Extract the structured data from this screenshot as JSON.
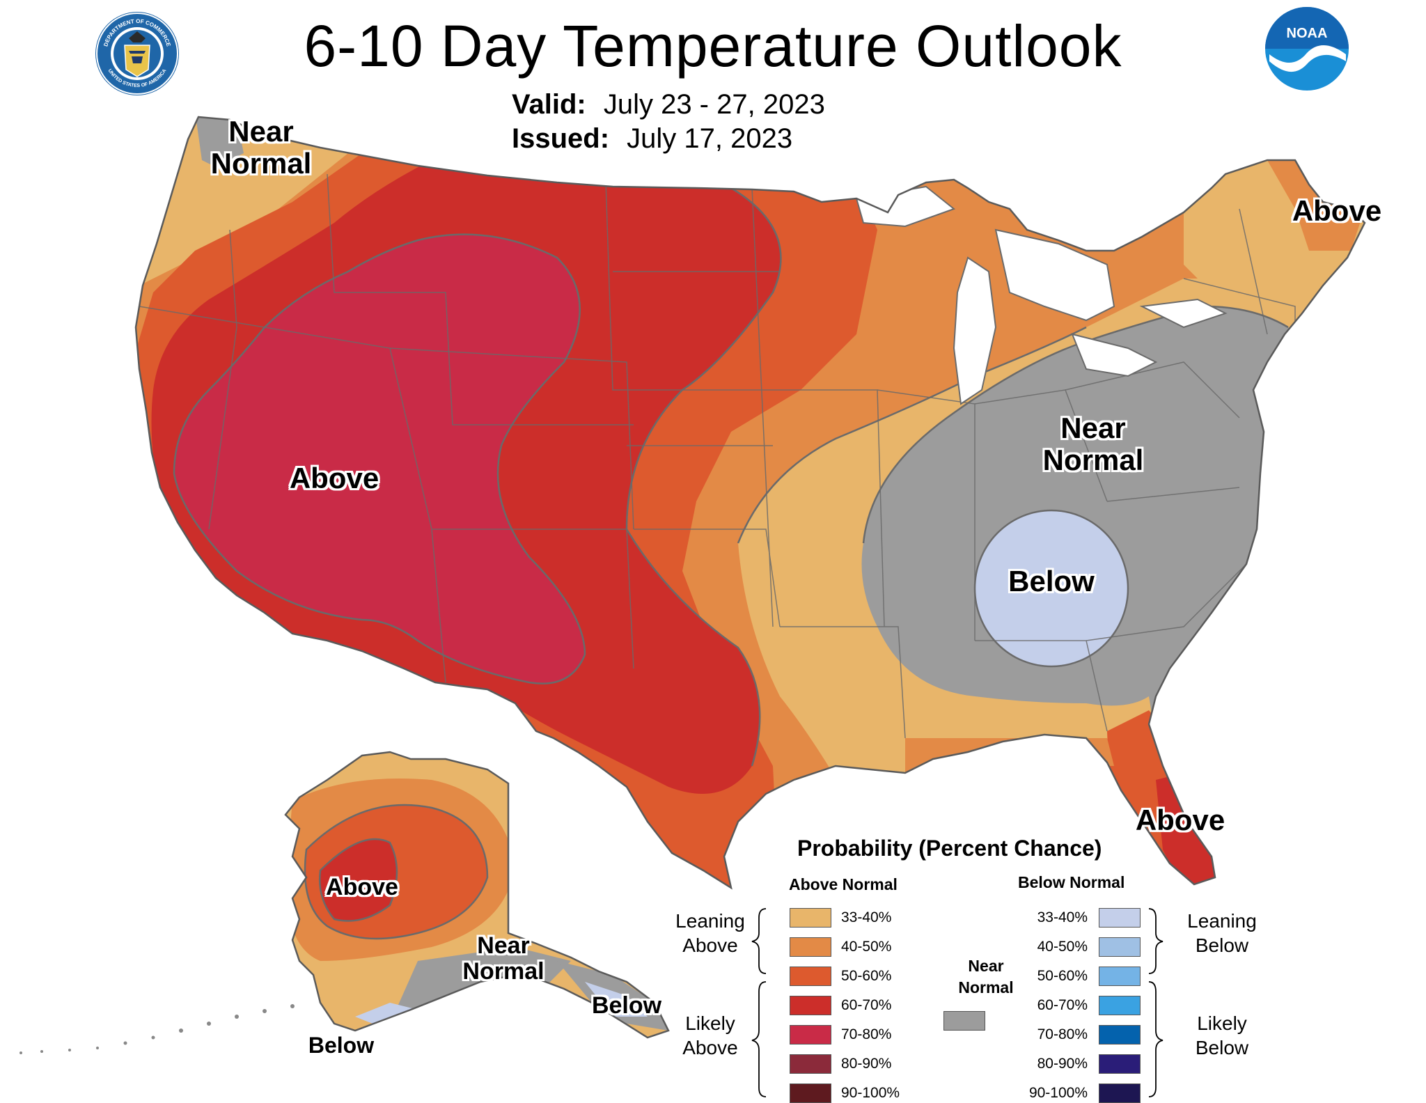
{
  "title": "6-10 Day Temperature Outlook",
  "valid_label": "Valid:",
  "valid_value": "July 23 - 27, 2023",
  "issued_label": "Issued:",
  "issued_value": "July 17, 2023",
  "logos": {
    "commerce_seal_ring_top": "DEPARTMENT OF COMMERCE",
    "commerce_seal_ring_bottom": "UNITED STATES OF AMERICA",
    "noaa_text": "NOAA"
  },
  "map_labels": {
    "nw_near_normal": "Near Normal",
    "ne_above": "Above",
    "west_above": "Above",
    "east_near_normal": "Near Normal",
    "se_below": "Below",
    "fl_above": "Above",
    "ak_above": "Above",
    "ak_near_normal": "Near Normal",
    "ak_below_se": "Below",
    "ak_below_sw": "Below"
  },
  "legend": {
    "title": "Probability (Percent Chance)",
    "above_header": "Above Normal",
    "below_header": "Below Normal",
    "near_normal_label": "Near Normal",
    "leaning_above": "Leaning Above",
    "likely_above": "Likely Above",
    "leaning_below": "Leaning Below",
    "likely_below": "Likely Below",
    "above_ranges": [
      "33-40%",
      "40-50%",
      "50-60%",
      "60-70%",
      "70-80%",
      "80-90%",
      "90-100%"
    ],
    "below_ranges": [
      "33-40%",
      "40-50%",
      "50-60%",
      "60-70%",
      "70-80%",
      "80-90%",
      "90-100%"
    ]
  },
  "colors": {
    "above": [
      "#e8b56a",
      "#e38a46",
      "#dd5a2e",
      "#cc2e2a",
      "#c92b47",
      "#8b2a3a",
      "#5e1a1f"
    ],
    "below": [
      "#c4cfea",
      "#9fc0e4",
      "#74b3e6",
      "#3aa2e2",
      "#0462ad",
      "#2a1d78",
      "#1d1652"
    ],
    "near_normal": "#9c9c9c",
    "land_background": "#ffffff",
    "water": "#ffffff",
    "border": "#5a5a5a"
  }
}
